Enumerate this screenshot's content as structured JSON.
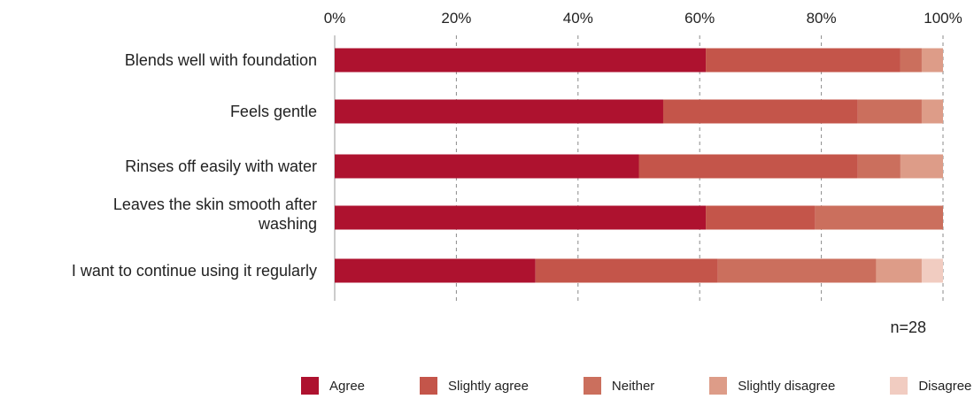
{
  "chart_data": {
    "type": "bar",
    "orientation": "horizontal",
    "stacked": true,
    "note": "n=28",
    "x_ticks": [
      "0%",
      "20%",
      "40%",
      "60%",
      "80%",
      "100%"
    ],
    "xlim": [
      0,
      100
    ],
    "categories": [
      "Blends well with foundation",
      "Feels gentle",
      "Rinses off easily with water",
      "Leaves the skin smooth after washing",
      "I want to continue using it regularly"
    ],
    "series": [
      {
        "name": "Agree",
        "color": "#ae122f",
        "values": [
          61,
          54,
          50,
          61,
          33
        ]
      },
      {
        "name": "Slightly agree",
        "color": "#c4554a",
        "values": [
          32,
          32,
          36,
          18,
          30
        ]
      },
      {
        "name": "Neither",
        "color": "#cb6f5d",
        "values": [
          3.5,
          10.5,
          7,
          21,
          26
        ]
      },
      {
        "name": "Slightly disagree",
        "color": "#dd9c88",
        "values": [
          3.5,
          3.5,
          7,
          0,
          7.5
        ]
      },
      {
        "name": "Disagree",
        "color": "#f1ccc1",
        "values": [
          0,
          0,
          0,
          0,
          3.5
        ]
      }
    ],
    "grid": "vertical dashed",
    "legend_position": "bottom"
  }
}
